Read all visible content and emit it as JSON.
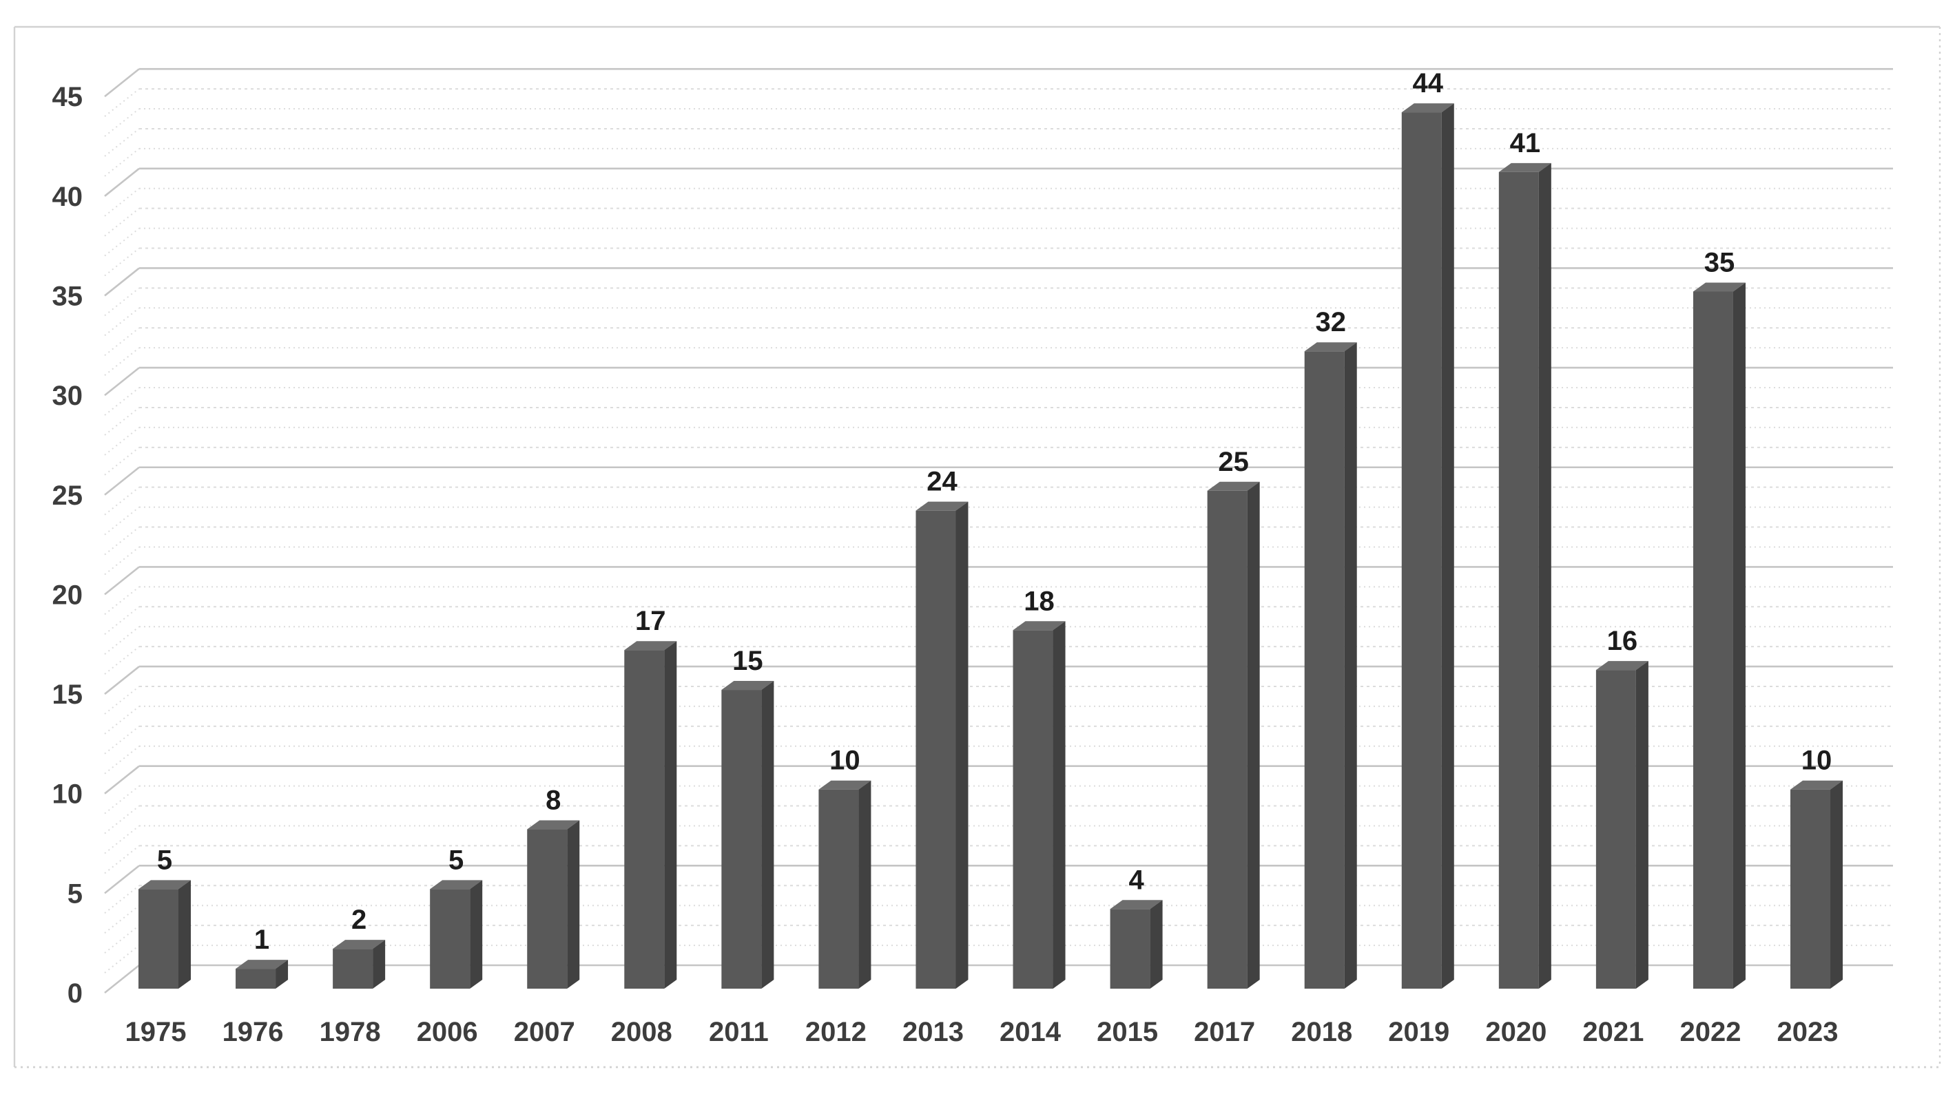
{
  "chart_data": {
    "type": "bar",
    "style": "3d-column",
    "title": "",
    "xlabel": "",
    "ylabel": "",
    "categories": [
      "1975",
      "1976",
      "1978",
      "2006",
      "2007",
      "2008",
      "2011",
      "2012",
      "2013",
      "2014",
      "2015",
      "2017",
      "2018",
      "2019",
      "2020",
      "2021",
      "2022",
      "2023"
    ],
    "values": [
      5,
      1,
      2,
      5,
      8,
      17,
      15,
      10,
      24,
      18,
      4,
      25,
      32,
      44,
      41,
      16,
      35,
      10
    ],
    "data_labels": [
      "5",
      "1",
      "2",
      "5",
      "8",
      "17",
      "15",
      "10",
      "24",
      "18",
      "4",
      "25",
      "32",
      "44",
      "41",
      "16",
      "35",
      "10"
    ],
    "y_ticks": [
      0,
      5,
      10,
      15,
      20,
      25,
      30,
      35,
      40,
      45
    ],
    "y_tick_labels": [
      "0",
      "5",
      "10",
      "15",
      "20",
      "25",
      "30",
      "35",
      "40",
      "45"
    ],
    "ylim": [
      0,
      46
    ],
    "grid": "horizontal; minor every 1 unit (dotted), major every 5 units (solid)",
    "legend": "none",
    "colors": {
      "bar_front": "#595959",
      "bar_side": "#414141",
      "bar_top": "#6d6d6d",
      "major_gridline": "#c5c5c5",
      "minor_gridline": "#dcdcdc",
      "axis_label_text": "#3d3d3d",
      "data_label_text": "#1c1c1c",
      "frame_border": "#d2d2d2",
      "background": "#ffffff"
    }
  }
}
